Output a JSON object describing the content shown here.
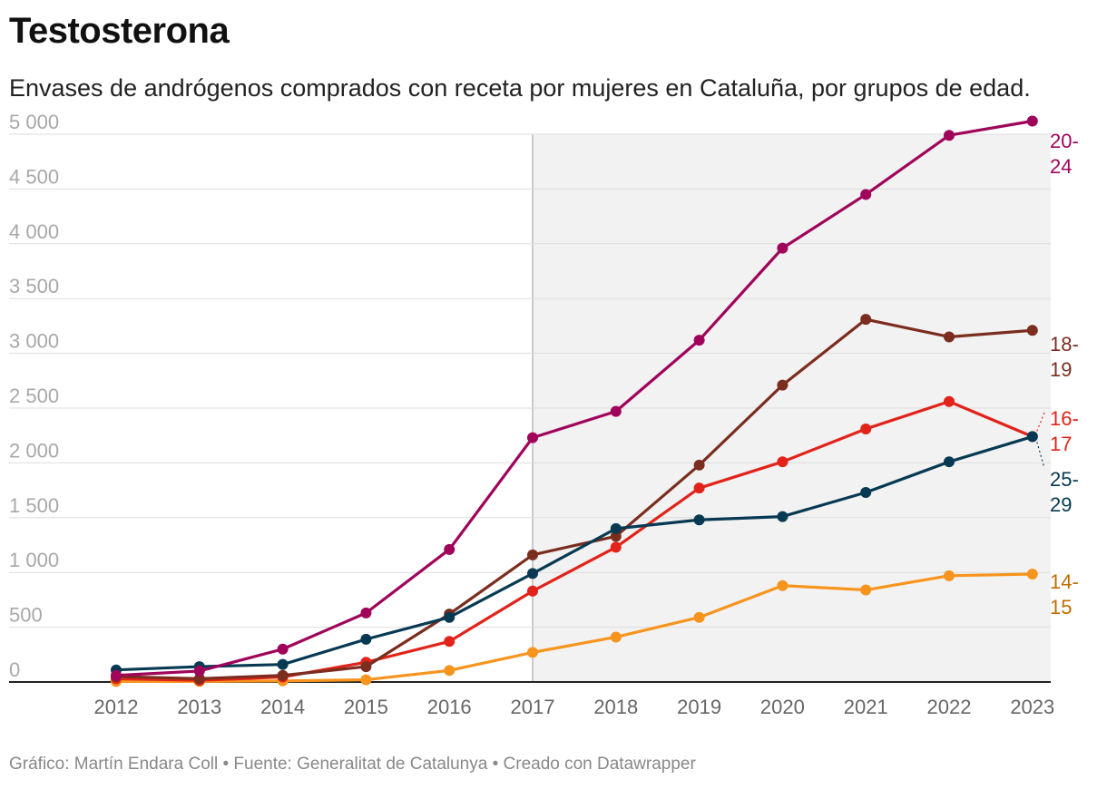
{
  "title": "Testosterona",
  "subtitle": "Envases de andrógenos comprados con receta por mujeres en Cataluña, por grupos de edad.",
  "footer": "Gráfico: Martín Endara Coll • Fuente: Generalitat de Catalunya • Creado con Datawrapper",
  "chart_data": {
    "type": "line",
    "x": [
      2012,
      2013,
      2014,
      2015,
      2016,
      2017,
      2018,
      2019,
      2020,
      2021,
      2022,
      2023
    ],
    "ylim": [
      0,
      5000
    ],
    "yticks": [
      0,
      500,
      1000,
      1500,
      2000,
      2500,
      3000,
      3500,
      4000,
      4500,
      5000
    ],
    "ytick_labels": [
      "0",
      "500",
      "1 000",
      "1 500",
      "2 000",
      "2 500",
      "3 000",
      "3 500",
      "4 000",
      "4 500",
      "5 000"
    ],
    "highlight_range": [
      2017,
      2023
    ],
    "series": [
      {
        "name": "14-15",
        "label_lines": [
          "14-",
          "15"
        ],
        "color": "#f7941d",
        "label_color": "#c06d00",
        "values": [
          5,
          5,
          10,
          20,
          105,
          270,
          410,
          590,
          880,
          840,
          970,
          985
        ]
      },
      {
        "name": "16-17",
        "label_lines": [
          "16-",
          "17"
        ],
        "color": "#e2231a",
        "label_color": "#e2231a",
        "values": [
          30,
          15,
          45,
          180,
          370,
          830,
          1230,
          1770,
          2010,
          2310,
          2560,
          2240
        ]
      },
      {
        "name": "18-19",
        "label_lines": [
          "18-",
          "19"
        ],
        "color": "#7b2d1f",
        "label_color": "#7b2d1f",
        "values": [
          50,
          30,
          60,
          140,
          620,
          1160,
          1330,
          1980,
          2710,
          3310,
          3150,
          3210
        ]
      },
      {
        "name": "25-29",
        "label_lines": [
          "25-",
          "29"
        ],
        "color": "#073a52",
        "label_color": "#073a52",
        "values": [
          110,
          140,
          160,
          390,
          590,
          990,
          1400,
          1480,
          1510,
          1730,
          2010,
          2240
        ]
      },
      {
        "name": "20-24",
        "label_lines": [
          "20-",
          "24"
        ],
        "color": "#a0045a",
        "label_color": "#a0045a",
        "values": [
          60,
          100,
          300,
          630,
          1210,
          2230,
          2470,
          3120,
          3960,
          4450,
          4990,
          5120
        ]
      }
    ]
  }
}
